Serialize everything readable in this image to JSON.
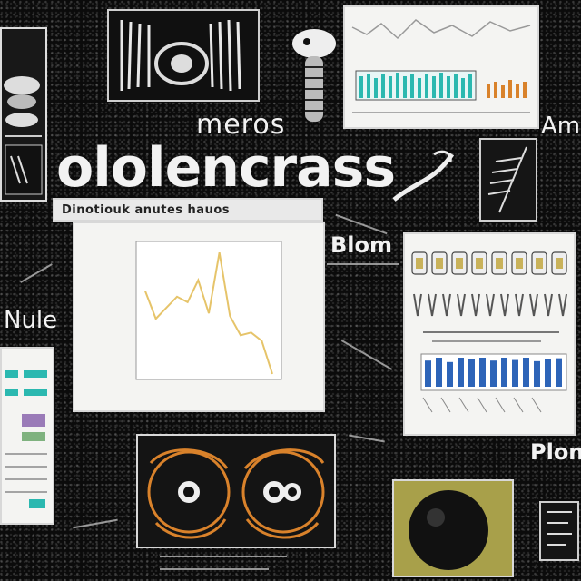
{
  "words": {
    "title_small": "meros",
    "title_main": "ololencrass",
    "right_top": "Am",
    "left_mid": "Nule",
    "right_mid": "Blom",
    "right_bottom": "Plon"
  },
  "center_panel": {
    "header": "Dinotiouk anutes hauos"
  },
  "chart_data": {
    "type": "line",
    "title": "",
    "xlabel": "",
    "ylabel": "",
    "series": [
      {
        "values": [
          3.2,
          2.2,
          2.6,
          3.0,
          2.8,
          3.6,
          2.4,
          4.6,
          2.3,
          1.6,
          1.7,
          1.4,
          0.2
        ]
      }
    ],
    "ylim": [
      0,
      5
    ],
    "grid": false,
    "line_color": "#e6c46a"
  },
  "bar_panel": {
    "bar_color": "#2d64b8",
    "values": [
      0.9,
      1.0,
      0.85,
      1.0,
      0.95,
      1.0,
      0.9,
      1.0,
      0.92,
      1.0,
      0.88,
      0.95,
      0.98
    ]
  },
  "colors": {
    "background": "#0b0b0b",
    "panel": "#f4f4f2",
    "accent_line": "#e6c46a",
    "accent_blue": "#2d64b8",
    "accent_teal": "#2bb8b0",
    "accent_orange": "#d9822b"
  },
  "icons": {
    "fish": "fish-skeleton-icon",
    "cell": "orange-cell-icon",
    "sphere": "dark-sphere-icon"
  }
}
